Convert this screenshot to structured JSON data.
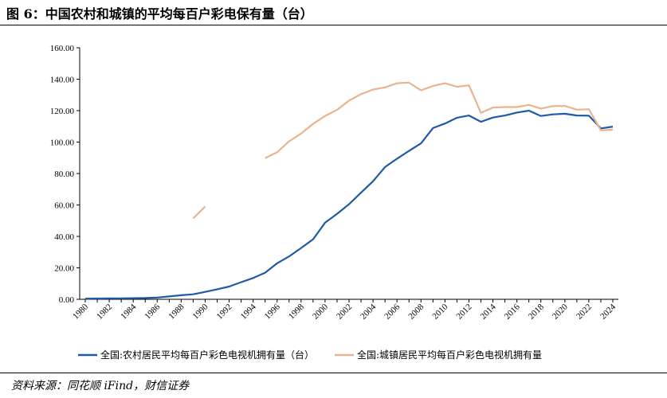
{
  "figure": {
    "title": "图 6：中国农村和城镇的平均每百户彩电保有量（台）",
    "source": "资料来源：同花顺 iFind，财信证券"
  },
  "chart_data": {
    "type": "line",
    "x": [
      1980,
      1981,
      1982,
      1983,
      1984,
      1985,
      1986,
      1987,
      1988,
      1989,
      1990,
      1991,
      1992,
      1993,
      1994,
      1995,
      1996,
      1997,
      1998,
      1999,
      2000,
      2001,
      2002,
      2003,
      2004,
      2005,
      2006,
      2007,
      2008,
      2009,
      2010,
      2011,
      2012,
      2013,
      2014,
      2015,
      2016,
      2017,
      2018,
      2019,
      2020,
      2021,
      2022,
      2023,
      2024
    ],
    "x_ticks": [
      "1980",
      "1982",
      "1984",
      "1986",
      "1988",
      "1990",
      "1992",
      "1994",
      "1996",
      "1998",
      "2000",
      "2002",
      "2004",
      "2006",
      "2008",
      "2010",
      "2012",
      "2014",
      "2016",
      "2018",
      "2020",
      "2022",
      "2024"
    ],
    "ylim": [
      0,
      160
    ],
    "y_ticks": [
      "0.00",
      "20.00",
      "40.00",
      "60.00",
      "80.00",
      "100.00",
      "120.00",
      "140.00",
      "160.00"
    ],
    "grid": false,
    "legend_position": "bottom",
    "xlabel": "",
    "ylabel": "",
    "series": [
      {
        "name": "全国:农村居民平均每百户彩色电视机拥有量（台）",
        "color": "#1f5aa6",
        "values": [
          0.4,
          0.5,
          0.6,
          0.6,
          0.7,
          0.8,
          1.1,
          1.8,
          2.6,
          3.2,
          4.7,
          6.4,
          8.1,
          10.9,
          13.5,
          16.9,
          22.9,
          27.3,
          32.6,
          38.2,
          48.7,
          54.4,
          60.5,
          67.8,
          75.1,
          84.1,
          89.4,
          94.4,
          99.2,
          108.9,
          111.8,
          115.5,
          116.9,
          112.9,
          115.6,
          116.9,
          118.8,
          120.0,
          116.6,
          117.6,
          118.0,
          116.9,
          116.8,
          108.7,
          109.8
        ]
      },
      {
        "name": "全国:城镇居民平均每百户彩色电视机拥有量",
        "color": "#e8b48e",
        "values": [
          null,
          null,
          null,
          null,
          null,
          null,
          null,
          null,
          null,
          51.5,
          59.0,
          null,
          null,
          null,
          null,
          89.8,
          93.5,
          100.5,
          105.4,
          111.6,
          116.6,
          120.5,
          126.4,
          130.5,
          133.4,
          134.8,
          137.4,
          137.8,
          132.9,
          135.7,
          137.4,
          135.2,
          136.1,
          118.6,
          122.0,
          122.3,
          122.3,
          123.7,
          121.3,
          122.9,
          123.0,
          120.6,
          120.9,
          107.5,
          107.9
        ]
      }
    ]
  }
}
